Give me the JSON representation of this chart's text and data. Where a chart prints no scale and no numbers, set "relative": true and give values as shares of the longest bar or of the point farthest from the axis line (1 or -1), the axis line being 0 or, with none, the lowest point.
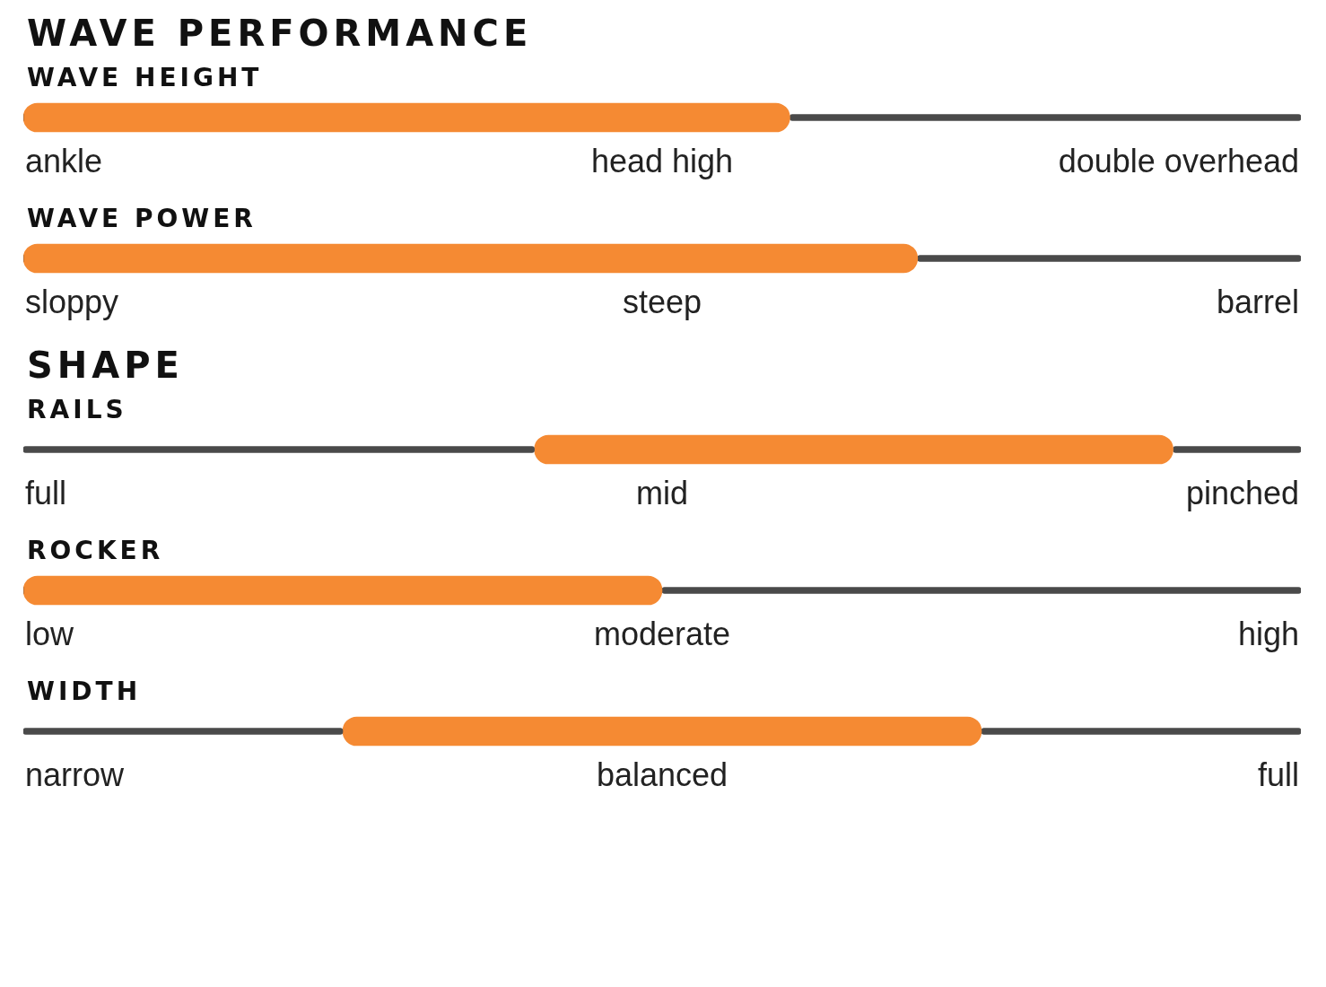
{
  "chart_data": [
    {
      "type": "bar",
      "title": "WAVE PERFORMANCE",
      "orientation": "horizontal",
      "relative": true,
      "stacked": true,
      "categories": [
        "WAVE HEIGHT"
      ],
      "annotations": [
        "ankle",
        "head high",
        "double overhead"
      ],
      "series": [
        {
          "color": "#4a4a4a",
          "values": [
            0
          ]
        },
        {
          "color": "#f58a33",
          "values": [
            0.6
          ]
        },
        {
          "color": "#4a4a4a",
          "values": [
            0.4
          ]
        }
      ]
    },
    {
      "type": "bar",
      "orientation": "horizontal",
      "relative": true,
      "stacked": true,
      "categories": [
        "WAVE POWER"
      ],
      "annotations": [
        "sloppy",
        "steep",
        "barrel"
      ],
      "series": [
        {
          "color": "#4a4a4a",
          "values": [
            0
          ]
        },
        {
          "color": "#f58a33",
          "values": [
            0.7
          ]
        },
        {
          "color": "#4a4a4a",
          "values": [
            0.3
          ]
        }
      ]
    },
    {
      "type": "bar",
      "title": "SHAPE",
      "orientation": "horizontal",
      "relative": true,
      "stacked": true,
      "categories": [
        "RAILS"
      ],
      "annotations": [
        "full",
        "mid",
        "pinched"
      ],
      "series": [
        {
          "color": "#4a4a4a",
          "values": [
            0.4
          ]
        },
        {
          "color": "#f58a33",
          "values": [
            0.5
          ]
        },
        {
          "color": "#4a4a4a",
          "values": [
            0.1
          ]
        }
      ]
    },
    {
      "type": "bar",
      "orientation": "horizontal",
      "relative": true,
      "stacked": true,
      "categories": [
        "ROCKER"
      ],
      "annotations": [
        "low",
        "moderate",
        "high"
      ],
      "series": [
        {
          "color": "#4a4a4a",
          "values": [
            0
          ]
        },
        {
          "color": "#f58a33",
          "values": [
            0.5
          ]
        },
        {
          "color": "#4a4a4a",
          "values": [
            0.5
          ]
        }
      ]
    },
    {
      "type": "bar",
      "orientation": "horizontal",
      "relative": true,
      "stacked": true,
      "categories": [
        "WIDTH"
      ],
      "annotations": [
        "narrow",
        "balanced",
        "full"
      ],
      "series": [
        {
          "color": "#4a4a4a",
          "values": [
            0.25
          ]
        },
        {
          "color": "#f58a33",
          "values": [
            0.5
          ]
        },
        {
          "color": "#4a4a4a",
          "values": [
            0.25
          ]
        }
      ]
    }
  ]
}
